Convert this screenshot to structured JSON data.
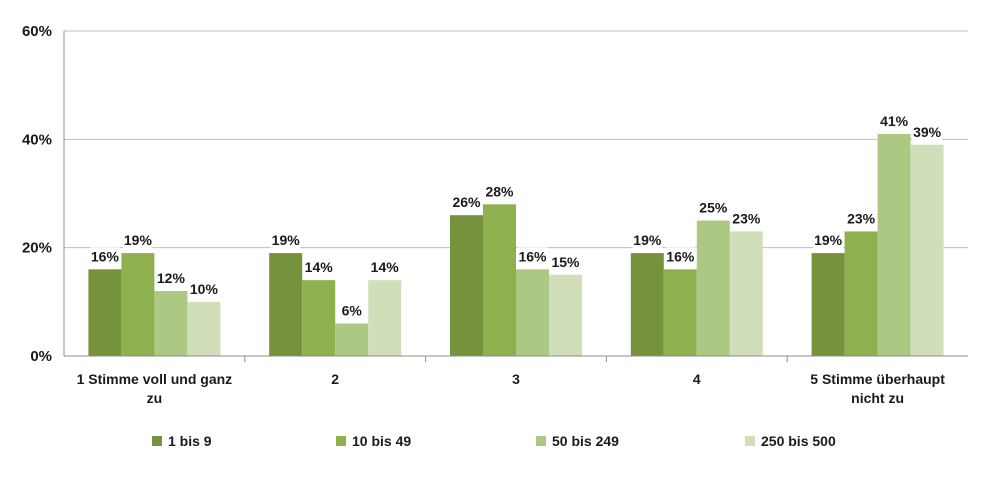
{
  "chart_data": {
    "type": "bar",
    "categories": [
      [
        "1 Stimme voll und ganz",
        "zu"
      ],
      [
        "2"
      ],
      [
        "3"
      ],
      [
        "4"
      ],
      [
        "5 Stimme überhaupt",
        "nicht zu"
      ]
    ],
    "series": [
      {
        "name": "1 bis 9",
        "color": "#76923c",
        "values": [
          16,
          19,
          26,
          19,
          19
        ],
        "labels": [
          "16%",
          "19%",
          "26%",
          "19%",
          "19%"
        ]
      },
      {
        "name": "10 bis 49",
        "color": "#8eb04f",
        "values": [
          19,
          14,
          28,
          16,
          23
        ],
        "labels": [
          "19%",
          "14%",
          "28%",
          "16%",
          "23%"
        ]
      },
      {
        "name": "50 bis 249",
        "color": "#adc883",
        "values": [
          12,
          6,
          16,
          25,
          41
        ],
        "labels": [
          "12%",
          "6%",
          "16%",
          "25%",
          "41%"
        ]
      },
      {
        "name": "250 bis 500",
        "color": "#d0dfba",
        "values": [
          10,
          14,
          15,
          23,
          39
        ],
        "labels": [
          "10%",
          "14%",
          "15%",
          "23%",
          "39%"
        ]
      }
    ],
    "yticks": [
      "0%",
      "20%",
      "40%",
      "60%"
    ],
    "ytick_values": [
      0,
      20,
      40,
      60
    ],
    "ylim": [
      0,
      60
    ],
    "grid": true,
    "legend_position": "bottom",
    "title": "",
    "xlabel": "",
    "ylabel": ""
  }
}
